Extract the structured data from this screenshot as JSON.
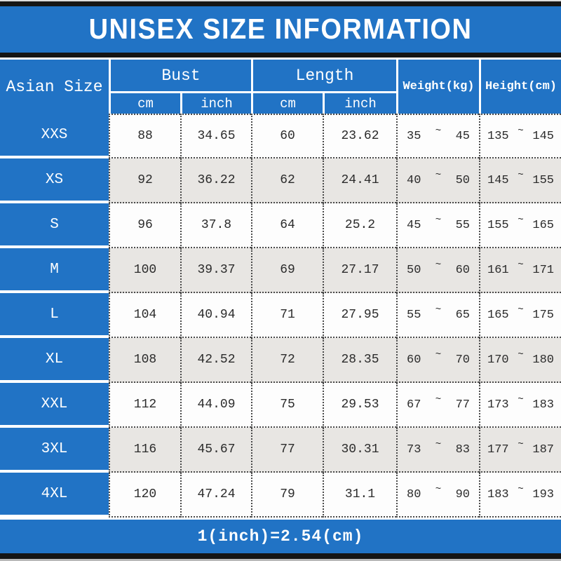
{
  "title": "UNISEX SIZE INFORMATION",
  "footer_note": "1(inch)=2.54(cm)",
  "colors": {
    "accent_blue": "#2173c5",
    "band_black": "#151515",
    "row_shade": "#e8e6e3",
    "text_dark": "#2b2b2b"
  },
  "table": {
    "size_column_header": "Asian Size",
    "groups": [
      {
        "label": "Bust",
        "sub": [
          "cm",
          "inch"
        ]
      },
      {
        "label": "Length",
        "sub": [
          "cm",
          "inch"
        ]
      }
    ],
    "single_columns": [
      "Weight(kg)",
      "Height(cm)"
    ],
    "range_separator": "~",
    "rows": [
      {
        "size": "XXS",
        "bust_cm": "88",
        "bust_inch": "34.65",
        "length_cm": "60",
        "length_inch": "23.62",
        "weight_min": "35",
        "weight_max": "45",
        "height_min": "135",
        "height_max": "145"
      },
      {
        "size": "XS",
        "bust_cm": "92",
        "bust_inch": "36.22",
        "length_cm": "62",
        "length_inch": "24.41",
        "weight_min": "40",
        "weight_max": "50",
        "height_min": "145",
        "height_max": "155"
      },
      {
        "size": "S",
        "bust_cm": "96",
        "bust_inch": "37.8",
        "length_cm": "64",
        "length_inch": "25.2",
        "weight_min": "45",
        "weight_max": "55",
        "height_min": "155",
        "height_max": "165"
      },
      {
        "size": "M",
        "bust_cm": "100",
        "bust_inch": "39.37",
        "length_cm": "69",
        "length_inch": "27.17",
        "weight_min": "50",
        "weight_max": "60",
        "height_min": "161",
        "height_max": "171"
      },
      {
        "size": "L",
        "bust_cm": "104",
        "bust_inch": "40.94",
        "length_cm": "71",
        "length_inch": "27.95",
        "weight_min": "55",
        "weight_max": "65",
        "height_min": "165",
        "height_max": "175"
      },
      {
        "size": "XL",
        "bust_cm": "108",
        "bust_inch": "42.52",
        "length_cm": "72",
        "length_inch": "28.35",
        "weight_min": "60",
        "weight_max": "70",
        "height_min": "170",
        "height_max": "180"
      },
      {
        "size": "XXL",
        "bust_cm": "112",
        "bust_inch": "44.09",
        "length_cm": "75",
        "length_inch": "29.53",
        "weight_min": "67",
        "weight_max": "77",
        "height_min": "173",
        "height_max": "183"
      },
      {
        "size": "3XL",
        "bust_cm": "116",
        "bust_inch": "45.67",
        "length_cm": "77",
        "length_inch": "30.31",
        "weight_min": "73",
        "weight_max": "83",
        "height_min": "177",
        "height_max": "187"
      },
      {
        "size": "4XL",
        "bust_cm": "120",
        "bust_inch": "47.24",
        "length_cm": "79",
        "length_inch": "31.1",
        "weight_min": "80",
        "weight_max": "90",
        "height_min": "183",
        "height_max": "193"
      }
    ]
  }
}
